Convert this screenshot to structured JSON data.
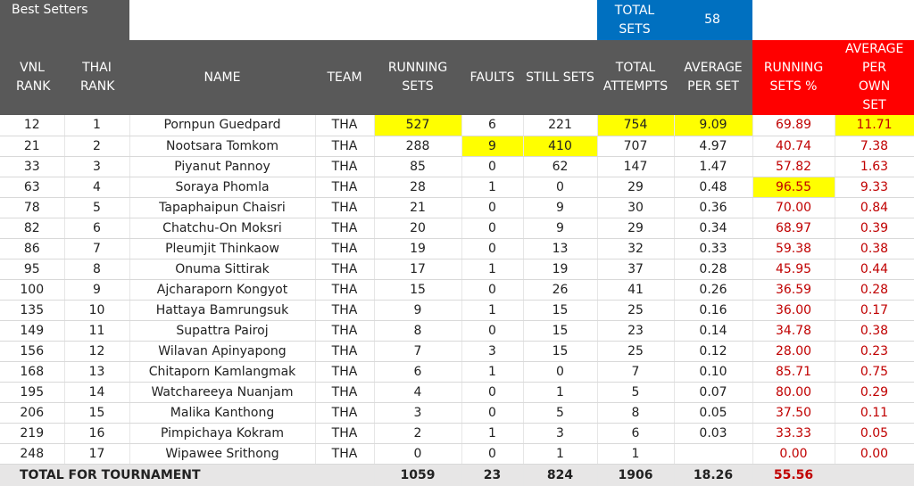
{
  "header": {
    "best_setters": "Best Setters",
    "total_sets_label": "TOTAL SETS",
    "total_sets_value": "58"
  },
  "columns": [
    "VNL RANK",
    "THAI RANK",
    "NAME",
    "TEAM",
    "RUNNING SETS",
    "FAULTS",
    "STILL SETS",
    "TOTAL ATTEMPTS",
    "AVERAGE PER SET",
    "RUNNING SETS %",
    "AVERAGE PER OWN SET"
  ],
  "colors": {
    "header_dark": "#595959",
    "header_red": "#ff0000",
    "header_blue": "#0070c0",
    "highlight": "#ffff00",
    "red_text": "#c00000"
  },
  "rows": [
    {
      "vnl": "12",
      "thai": "1",
      "name": "Pornpun Guedpard",
      "team": "THA",
      "running": "527",
      "faults": "6",
      "still": "221",
      "attempts": "754",
      "avg": "9.09",
      "pct": "69.89",
      "own": "11.71",
      "highlight": [
        "running",
        "attempts",
        "avg",
        "own"
      ]
    },
    {
      "vnl": "21",
      "thai": "2",
      "name": "Nootsara Tomkom",
      "team": "THA",
      "running": "288",
      "faults": "9",
      "still": "410",
      "attempts": "707",
      "avg": "4.97",
      "pct": "40.74",
      "own": "7.38",
      "highlight": [
        "faults",
        "still"
      ]
    },
    {
      "vnl": "33",
      "thai": "3",
      "name": "Piyanut Pannoy",
      "team": "THA",
      "running": "85",
      "faults": "0",
      "still": "62",
      "attempts": "147",
      "avg": "1.47",
      "pct": "57.82",
      "own": "1.63",
      "highlight": []
    },
    {
      "vnl": "63",
      "thai": "4",
      "name": "Soraya Phomla",
      "team": "THA",
      "running": "28",
      "faults": "1",
      "still": "0",
      "attempts": "29",
      "avg": "0.48",
      "pct": "96.55",
      "own": "9.33",
      "highlight": [
        "pct"
      ]
    },
    {
      "vnl": "78",
      "thai": "5",
      "name": "Tapaphaipun Chaisri",
      "team": "THA",
      "running": "21",
      "faults": "0",
      "still": "9",
      "attempts": "30",
      "avg": "0.36",
      "pct": "70.00",
      "own": "0.84",
      "highlight": []
    },
    {
      "vnl": "82",
      "thai": "6",
      "name": "Chatchu-On Moksri",
      "team": "THA",
      "running": "20",
      "faults": "0",
      "still": "9",
      "attempts": "29",
      "avg": "0.34",
      "pct": "68.97",
      "own": "0.39",
      "highlight": []
    },
    {
      "vnl": "86",
      "thai": "7",
      "name": "Pleumjit Thinkaow",
      "team": "THA",
      "running": "19",
      "faults": "0",
      "still": "13",
      "attempts": "32",
      "avg": "0.33",
      "pct": "59.38",
      "own": "0.38",
      "highlight": []
    },
    {
      "vnl": "95",
      "thai": "8",
      "name": "Onuma Sittirak",
      "team": "THA",
      "running": "17",
      "faults": "1",
      "still": "19",
      "attempts": "37",
      "avg": "0.28",
      "pct": "45.95",
      "own": "0.44",
      "highlight": []
    },
    {
      "vnl": "100",
      "thai": "9",
      "name": "Ajcharaporn Kongyot",
      "team": "THA",
      "running": "15",
      "faults": "0",
      "still": "26",
      "attempts": "41",
      "avg": "0.26",
      "pct": "36.59",
      "own": "0.28",
      "highlight": []
    },
    {
      "vnl": "135",
      "thai": "10",
      "name": "Hattaya Bamrungsuk",
      "team": "THA",
      "running": "9",
      "faults": "1",
      "still": "15",
      "attempts": "25",
      "avg": "0.16",
      "pct": "36.00",
      "own": "0.17",
      "highlight": []
    },
    {
      "vnl": "149",
      "thai": "11",
      "name": "Supattra Pairoj",
      "team": "THA",
      "running": "8",
      "faults": "0",
      "still": "15",
      "attempts": "23",
      "avg": "0.14",
      "pct": "34.78",
      "own": "0.38",
      "highlight": []
    },
    {
      "vnl": "156",
      "thai": "12",
      "name": "Wilavan Apinyapong",
      "team": "THA",
      "running": "7",
      "faults": "3",
      "still": "15",
      "attempts": "25",
      "avg": "0.12",
      "pct": "28.00",
      "own": "0.23",
      "highlight": []
    },
    {
      "vnl": "168",
      "thai": "13",
      "name": "Chitaporn Kamlangmak",
      "team": "THA",
      "running": "6",
      "faults": "1",
      "still": "0",
      "attempts": "7",
      "avg": "0.10",
      "pct": "85.71",
      "own": "0.75",
      "highlight": []
    },
    {
      "vnl": "195",
      "thai": "14",
      "name": "Watchareeya Nuanjam",
      "team": "THA",
      "running": "4",
      "faults": "0",
      "still": "1",
      "attempts": "5",
      "avg": "0.07",
      "pct": "80.00",
      "own": "0.29",
      "highlight": []
    },
    {
      "vnl": "206",
      "thai": "15",
      "name": "Malika Kanthong",
      "team": "THA",
      "running": "3",
      "faults": "0",
      "still": "5",
      "attempts": "8",
      "avg": "0.05",
      "pct": "37.50",
      "own": "0.11",
      "highlight": []
    },
    {
      "vnl": "219",
      "thai": "16",
      "name": "Pimpichaya Kokram",
      "team": "THA",
      "running": "2",
      "faults": "1",
      "still": "3",
      "attempts": "6",
      "avg": "0.03",
      "pct": "33.33",
      "own": "0.05",
      "highlight": []
    },
    {
      "vnl": "248",
      "thai": "17",
      "name": "Wipawee Srithong",
      "team": "THA",
      "running": "0",
      "faults": "0",
      "still": "1",
      "attempts": "1",
      "avg": "",
      "pct": "0.00",
      "own": "0.00",
      "highlight": []
    }
  ],
  "totals": {
    "label": "TOTAL FOR TOURNAMENT",
    "running": "1059",
    "faults": "23",
    "still": "824",
    "attempts": "1906",
    "avg": "18.26",
    "pct": "55.56",
    "own": ""
  }
}
